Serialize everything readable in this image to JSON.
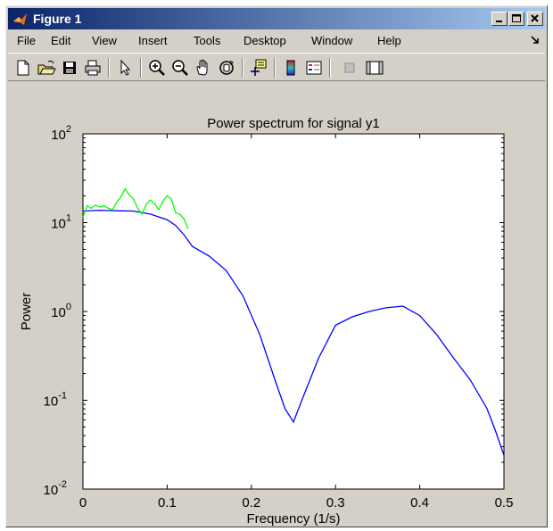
{
  "window": {
    "title": "Figure 1"
  },
  "menu": [
    "File",
    "Edit",
    "View",
    "Insert",
    "Tools",
    "Desktop",
    "Window",
    "Help"
  ],
  "toolbar": {
    "buttons": [
      "new-figure",
      "open-file",
      "save-figure",
      "print-figure",
      "edit-plot",
      "zoom-in",
      "zoom-out",
      "pan",
      "rotate-3d",
      "data-cursor",
      "insert-colorbar",
      "insert-legend",
      "hide-plot-tools",
      "show-plot-tools"
    ]
  },
  "chart_data": {
    "type": "line",
    "title": "Power spectrum for signal y1",
    "xlabel": "Frequency (1/s)",
    "ylabel": "Power",
    "xlim": [
      0,
      0.5
    ],
    "ylim": [
      0.01,
      100
    ],
    "yscale": "log",
    "grid": false,
    "xticks": [
      "0",
      "0.1",
      "0.2",
      "0.3",
      "0.4",
      "0.5"
    ],
    "yticks": [
      {
        "base": "10",
        "exp": "2"
      },
      {
        "base": "10",
        "exp": "1"
      },
      {
        "base": "10",
        "exp": "0"
      },
      {
        "base": "10",
        "exp": "-1"
      },
      {
        "base": "10",
        "exp": "-2"
      }
    ],
    "series": [
      {
        "color": "#0000ff",
        "x": [
          0,
          0.02,
          0.04,
          0.06,
          0.08,
          0.1,
          0.11,
          0.12,
          0.13,
          0.15,
          0.17,
          0.19,
          0.21,
          0.23,
          0.24,
          0.25,
          0.26,
          0.28,
          0.3,
          0.32,
          0.34,
          0.36,
          0.38,
          0.4,
          0.42,
          0.44,
          0.46,
          0.48,
          0.49,
          0.5
        ],
        "y": [
          13.5,
          13.8,
          13.6,
          13.5,
          12.5,
          10.8,
          9.3,
          7.3,
          5.4,
          4.2,
          2.9,
          1.5,
          0.55,
          0.15,
          0.08,
          0.057,
          0.1,
          0.3,
          0.7,
          0.87,
          1.0,
          1.1,
          1.15,
          0.9,
          0.55,
          0.3,
          0.17,
          0.08,
          0.045,
          0.024
        ]
      },
      {
        "color": "#00ff00",
        "x": [
          0,
          0.005,
          0.01,
          0.015,
          0.02,
          0.025,
          0.03,
          0.035,
          0.04,
          0.045,
          0.05,
          0.055,
          0.06,
          0.065,
          0.07,
          0.075,
          0.08,
          0.085,
          0.09,
          0.095,
          0.1,
          0.105,
          0.11,
          0.115,
          0.12,
          0.125
        ],
        "y": [
          11.5,
          15.5,
          14.5,
          15.8,
          15.0,
          15.5,
          14.5,
          14.0,
          17.0,
          19.5,
          24.0,
          20.5,
          18.5,
          14.5,
          12.5,
          16.0,
          18.0,
          16.5,
          14.0,
          17.5,
          20.0,
          18.5,
          13.0,
          12.5,
          11.0,
          8.5
        ]
      }
    ]
  }
}
